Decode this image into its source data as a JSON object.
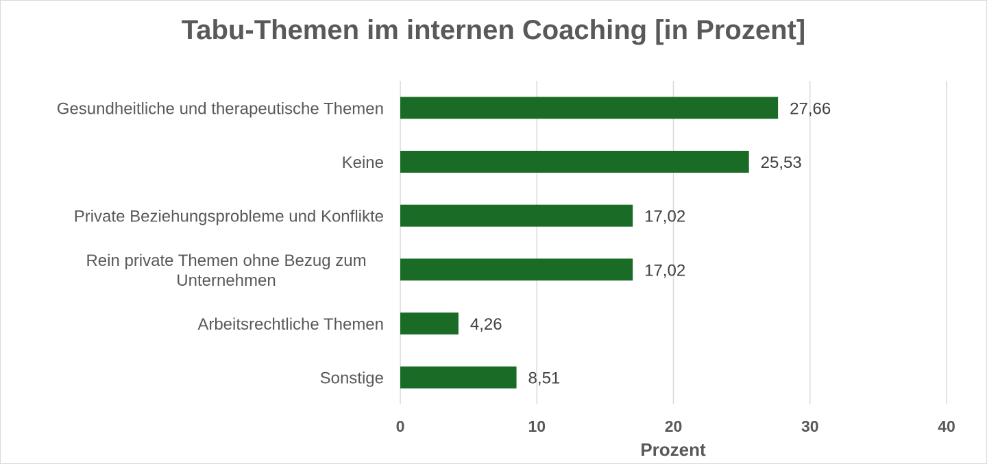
{
  "chart_data": {
    "type": "bar",
    "orientation": "horizontal",
    "title": "Tabu-Themen im internen Coaching [in Prozent]",
    "xlabel": "Prozent",
    "ylabel": "",
    "categories": [
      [
        "Gesundheitliche und therapeutische Themen"
      ],
      [
        "Keine"
      ],
      [
        "Private Beziehungsprobleme und Konflikte"
      ],
      [
        "Rein private Themen ohne Bezug zum",
        "Unternehmen"
      ],
      [
        "Arbeitsrechtliche Themen"
      ],
      [
        "Sonstige"
      ]
    ],
    "values": [
      27.66,
      25.53,
      17.02,
      17.02,
      4.26,
      8.51
    ],
    "value_labels": [
      "27,66",
      "25,53",
      "17,02",
      "17,02",
      "4,26",
      "8,51"
    ],
    "xlim": [
      0,
      40
    ],
    "xticks": [
      0,
      10,
      20,
      30,
      40
    ],
    "xtick_labels": [
      "0",
      "10",
      "20",
      "30",
      "40"
    ],
    "grid": "vertical",
    "legend": "none",
    "bar_color": "#1a6b26",
    "grid_color": "#d9d9d9"
  }
}
